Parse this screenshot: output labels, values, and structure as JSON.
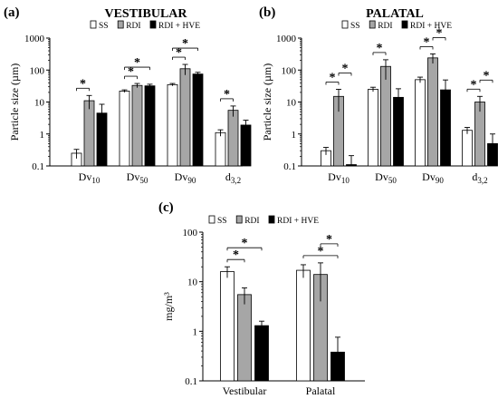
{
  "legend": {
    "items": [
      {
        "label": "SS",
        "color": "#ffffff"
      },
      {
        "label": "RDI",
        "color": "#a6a6a6"
      },
      {
        "label": "RDI + HVE",
        "color": "#000000"
      }
    ]
  },
  "chart_data": [
    {
      "panel": "(a)",
      "type": "bar",
      "title": "VESTIBULAR",
      "ylabel": "Particle size (µm)",
      "yscale": "log",
      "ylim": [
        0.1,
        1000
      ],
      "yticks": [
        "0.1",
        "1",
        "10",
        "100",
        "1000"
      ],
      "categories": [
        {
          "base": "Dv",
          "sub": "10"
        },
        {
          "base": "Dv",
          "sub": "50"
        },
        {
          "base": "Dv",
          "sub": "90"
        },
        {
          "base": "d",
          "sub": "3,2"
        }
      ],
      "series": [
        {
          "name": "SS",
          "values": [
            0.25,
            22,
            35,
            1.1
          ],
          "errors": [
            0.08,
            2,
            3,
            0.25
          ]
        },
        {
          "name": "RDI",
          "values": [
            11,
            33,
            110,
            5.5
          ],
          "errors": [
            5,
            5,
            40,
            2
          ]
        },
        {
          "name": "RDI + HVE",
          "values": [
            4.5,
            32,
            75,
            1.9
          ],
          "errors": [
            4,
            4,
            10,
            0.8
          ]
        }
      ],
      "significance": [
        {
          "category": 0,
          "from": 0,
          "to": 1,
          "label": "*"
        },
        {
          "category": 1,
          "from": 0,
          "to": 1,
          "label": "*"
        },
        {
          "category": 1,
          "from": 0,
          "to": 2,
          "label": "*"
        },
        {
          "category": 2,
          "from": 0,
          "to": 1,
          "label": "*"
        },
        {
          "category": 2,
          "from": 0,
          "to": 2,
          "label": "*"
        },
        {
          "category": 3,
          "from": 0,
          "to": 1,
          "label": "*"
        }
      ]
    },
    {
      "panel": "(b)",
      "type": "bar",
      "title": "PALATAL",
      "ylabel": "Particle size (µm)",
      "yscale": "log",
      "ylim": [
        0.1,
        1000
      ],
      "yticks": [
        "0.1",
        "1",
        "10",
        "100",
        "1000"
      ],
      "categories": [
        {
          "base": "Dv",
          "sub": "10"
        },
        {
          "base": "Dv",
          "sub": "50"
        },
        {
          "base": "Dv",
          "sub": "90"
        },
        {
          "base": "d",
          "sub": "3,2"
        }
      ],
      "series": [
        {
          "name": "SS",
          "values": [
            0.3,
            25,
            50,
            1.3
          ],
          "errors": [
            0.08,
            4,
            10,
            0.3
          ]
        },
        {
          "name": "RDI",
          "values": [
            15,
            130,
            240,
            10
          ],
          "errors": [
            10,
            80,
            80,
            5
          ]
        },
        {
          "name": "RDI + HVE",
          "values": [
            0.11,
            14,
            24,
            0.5
          ],
          "errors": [
            0.1,
            12,
            25,
            0.5
          ]
        }
      ],
      "significance": [
        {
          "category": 0,
          "from": 0,
          "to": 1,
          "label": "*"
        },
        {
          "category": 0,
          "from": 1,
          "to": 2,
          "label": "*"
        },
        {
          "category": 1,
          "from": 0,
          "to": 1,
          "label": "*"
        },
        {
          "category": 2,
          "from": 0,
          "to": 1,
          "label": "*"
        },
        {
          "category": 2,
          "from": 1,
          "to": 2,
          "label": "*"
        },
        {
          "category": 3,
          "from": 0,
          "to": 1,
          "label": "*"
        },
        {
          "category": 3,
          "from": 1,
          "to": 2,
          "label": "*"
        }
      ]
    },
    {
      "panel": "(c)",
      "type": "bar",
      "title": "",
      "ylabel": "mg/m³",
      "yscale": "log",
      "ylim": [
        0.1,
        100
      ],
      "yticks": [
        "0.1",
        "1",
        "10",
        "100"
      ],
      "categories": [
        {
          "base": "Vestibular",
          "sub": ""
        },
        {
          "base": "Palatal",
          "sub": ""
        }
      ],
      "series": [
        {
          "name": "SS",
          "values": [
            16,
            17
          ],
          "errors": [
            4,
            5
          ]
        },
        {
          "name": "RDI",
          "values": [
            5.5,
            14
          ],
          "errors": [
            2,
            10
          ]
        },
        {
          "name": "RDI + HVE",
          "values": [
            1.3,
            0.38
          ],
          "errors": [
            0.3,
            0.38
          ]
        }
      ],
      "significance": [
        {
          "category": 0,
          "from": 0,
          "to": 1,
          "label": "*"
        },
        {
          "category": 0,
          "from": 0,
          "to": 2,
          "label": "*"
        },
        {
          "category": 1,
          "from": 0,
          "to": 2,
          "label": "*"
        },
        {
          "category": 1,
          "from": 1,
          "to": 2,
          "label": "*"
        }
      ]
    }
  ]
}
